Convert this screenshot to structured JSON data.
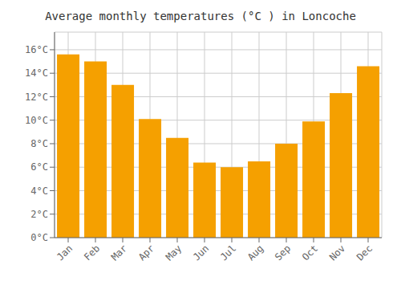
{
  "chart_data": {
    "type": "bar",
    "title": "Average monthly temperatures (°C ) in Loncoche",
    "categories": [
      "Jan",
      "Feb",
      "Mar",
      "Apr",
      "May",
      "Jun",
      "Jul",
      "Aug",
      "Sep",
      "Oct",
      "Nov",
      "Dec"
    ],
    "values": [
      15.6,
      15.0,
      13.0,
      10.1,
      8.5,
      6.4,
      6.0,
      6.5,
      8.0,
      9.9,
      12.3,
      14.6
    ],
    "color": "#F5A000",
    "ylim": [
      0,
      17.5
    ],
    "yticks": [
      {
        "value": 0,
        "label": "0°C"
      },
      {
        "value": 2,
        "label": "2°C"
      },
      {
        "value": 4,
        "label": "4°C"
      },
      {
        "value": 6,
        "label": "6°C"
      },
      {
        "value": 8,
        "label": "8°C"
      },
      {
        "value": 10,
        "label": "10°C"
      },
      {
        "value": 12,
        "label": "12°C"
      },
      {
        "value": 14,
        "label": "14°C"
      },
      {
        "value": 16,
        "label": "16°C"
      }
    ],
    "grid": true
  }
}
